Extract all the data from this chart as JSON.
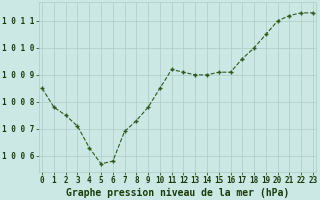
{
  "x": [
    0,
    1,
    2,
    3,
    4,
    5,
    6,
    7,
    8,
    9,
    10,
    11,
    12,
    13,
    14,
    15,
    16,
    17,
    18,
    19,
    20,
    21,
    22,
    23
  ],
  "y": [
    1008.5,
    1007.8,
    1007.5,
    1007.1,
    1006.3,
    1005.7,
    1005.8,
    1006.9,
    1007.3,
    1007.8,
    1008.5,
    1009.2,
    1009.1,
    1009.0,
    1009.0,
    1009.1,
    1009.1,
    1009.6,
    1010.0,
    1010.5,
    1011.0,
    1011.2,
    1011.3,
    1011.3
  ],
  "line_color": "#2d5a1b",
  "marker_color": "#2d5a1b",
  "bg_color": "#cce8e4",
  "grid_color": "#aaccc8",
  "xlabel": "Graphe pression niveau de la mer (hPa)",
  "xlabel_color": "#1a3a0a",
  "ylim": [
    1005.4,
    1011.7
  ],
  "yticks": [
    1006,
    1007,
    1008,
    1009,
    1010,
    1011
  ],
  "ytick_labels": [
    "1 0 0 6",
    "1 0 0 7",
    "1 0 0 8",
    "1 0 0 9",
    "1 0 1 0",
    "1 0 1 1"
  ],
  "xticks": [
    0,
    1,
    2,
    3,
    4,
    5,
    6,
    7,
    8,
    9,
    10,
    11,
    12,
    13,
    14,
    15,
    16,
    17,
    18,
    19,
    20,
    21,
    22,
    23
  ],
  "tick_label_color": "#1a3a0a",
  "axis_label_fontsize": 7.0,
  "tick_fontsize": 5.5,
  "ylabel_fontsize": 5.5
}
